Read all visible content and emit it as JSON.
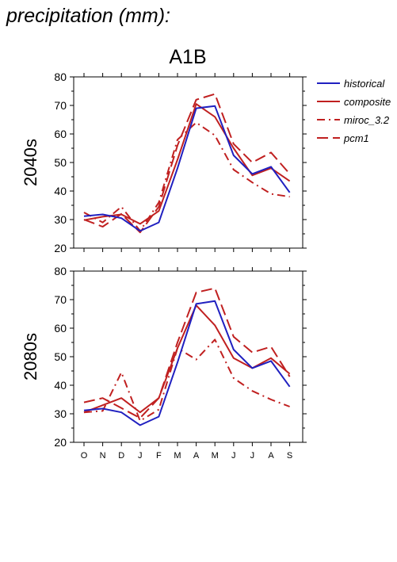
{
  "header": {
    "title": "precipitation (mm):"
  },
  "chart_data": {
    "type": "line",
    "title": "A1B",
    "categories": [
      "O",
      "N",
      "D",
      "J",
      "F",
      "M",
      "A",
      "M",
      "J",
      "J",
      "A",
      "S"
    ],
    "ylim": [
      20,
      80
    ],
    "yticks": [
      20,
      30,
      40,
      50,
      60,
      70,
      80
    ],
    "legend": {
      "placement": "top-right, outside plot",
      "entries": [
        "historical",
        "composite",
        "miroc_3.2",
        "pcm1"
      ]
    },
    "colors": {
      "historical": "#2020c0",
      "composite": "#c02020",
      "miroc_3.2": "#c02020",
      "pcm1": "#c02020"
    },
    "panels": [
      {
        "ylabel": "2040s",
        "series": [
          {
            "name": "historical",
            "style": "solid",
            "color": "#2020c0",
            "values": [
              31.2,
              31.8,
              30.5,
              26.0,
              29.0,
              48.0,
              69.0,
              69.8,
              52.5,
              46.0,
              48.5,
              39.5
            ]
          },
          {
            "name": "composite",
            "style": "solid",
            "color": "#c02020",
            "values": [
              29.8,
              31.0,
              31.8,
              28.5,
              33.0,
              51.0,
              70.5,
              66.0,
              55.0,
              45.5,
              48.0,
              43.5
            ]
          },
          {
            "name": "miroc_3.2",
            "style": "dashdot",
            "color": "#c02020",
            "values": [
              32.5,
              29.0,
              34.5,
              26.0,
              36.0,
              58.0,
              64.0,
              59.5,
              47.5,
              43.0,
              39.0,
              38.0
            ]
          },
          {
            "name": "pcm1",
            "style": "dashed",
            "color": "#c02020",
            "values": [
              30.0,
              27.5,
              32.0,
              25.5,
              34.5,
              56.0,
              72.0,
              74.0,
              56.5,
              50.0,
              53.5,
              46.0
            ]
          }
        ]
      },
      {
        "ylabel": "2080s",
        "series": [
          {
            "name": "historical",
            "style": "solid",
            "color": "#2020c0",
            "values": [
              31.2,
              31.8,
              30.5,
              26.0,
              29.0,
              48.0,
              68.5,
              69.5,
              52.5,
              46.0,
              48.5,
              39.5
            ]
          },
          {
            "name": "composite",
            "style": "solid",
            "color": "#c02020",
            "values": [
              30.5,
              33.0,
              35.5,
              30.5,
              35.5,
              53.0,
              68.0,
              61.0,
              49.5,
              46.0,
              49.5,
              44.0
            ]
          },
          {
            "name": "miroc_3.2",
            "style": "dashdot",
            "color": "#c02020",
            "values": [
              30.5,
              31.0,
              44.5,
              27.5,
              31.5,
              53.0,
              49.0,
              56.0,
              42.5,
              38.0,
              35.0,
              32.5
            ]
          },
          {
            "name": "pcm1",
            "style": "dashed",
            "color": "#c02020",
            "values": [
              34.0,
              35.5,
              32.0,
              28.5,
              35.5,
              55.0,
              72.5,
              74.0,
              57.0,
              51.5,
              53.5,
              43.0
            ]
          }
        ]
      }
    ]
  }
}
